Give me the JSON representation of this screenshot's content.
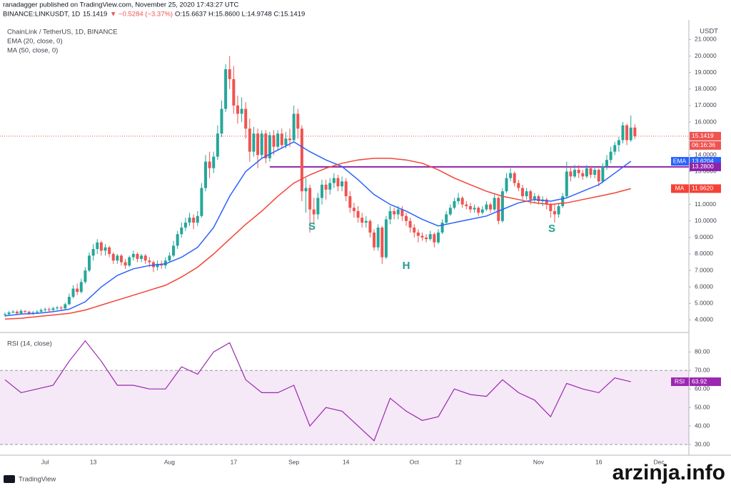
{
  "header": {
    "line1": "ranadagger published on TradingView.com, November 25, 2020 17:43:27 UTC",
    "symbol": "BINANCE:LINKUSDT, 1D",
    "price": "15.1419",
    "change": "▼ −0.5284 (−3.37%)",
    "ohlc": "O:15.6637 H:15.8600 L:14.9748 C:15.1419"
  },
  "footer": {
    "logo": "TradingView",
    "watermark": "arzinja.info"
  },
  "chart_data": {
    "type": "candlestick",
    "title": "ChainLink / TetherUS, 1D, BINANCE",
    "currency": "USDT",
    "up_color": "#26a69a",
    "down_color": "#ef5350",
    "candles": [
      [
        4.3,
        4.45,
        4.2,
        4.35
      ],
      [
        4.35,
        4.55,
        4.3,
        4.45
      ],
      [
        4.45,
        4.6,
        4.4,
        4.5
      ],
      [
        4.5,
        4.6,
        4.3,
        4.4
      ],
      [
        4.4,
        4.65,
        4.35,
        4.55
      ],
      [
        4.55,
        4.6,
        4.4,
        4.5
      ],
      [
        4.5,
        4.55,
        4.3,
        4.4
      ],
      [
        4.4,
        4.55,
        4.3,
        4.45
      ],
      [
        4.45,
        4.6,
        4.4,
        4.5
      ],
      [
        4.5,
        4.7,
        4.45,
        4.6
      ],
      [
        4.6,
        4.75,
        4.5,
        4.65
      ],
      [
        4.65,
        4.75,
        4.5,
        4.6
      ],
      [
        4.6,
        4.8,
        4.55,
        4.7
      ],
      [
        4.7,
        4.85,
        4.6,
        4.75
      ],
      [
        4.75,
        4.85,
        4.6,
        4.7
      ],
      [
        4.7,
        5.05,
        4.65,
        4.95
      ],
      [
        4.95,
        5.6,
        4.9,
        5.4
      ],
      [
        5.4,
        6.1,
        5.3,
        5.9
      ],
      [
        5.9,
        6.2,
        5.5,
        5.7
      ],
      [
        5.7,
        6.5,
        5.6,
        6.3
      ],
      [
        6.3,
        7.2,
        6.2,
        7.0
      ],
      [
        7.0,
        8.1,
        6.9,
        7.9
      ],
      [
        7.9,
        8.6,
        7.6,
        8.3
      ],
      [
        8.3,
        8.9,
        8.0,
        8.7
      ],
      [
        8.7,
        8.8,
        7.9,
        8.2
      ],
      [
        8.2,
        8.6,
        7.9,
        8.4
      ],
      [
        8.4,
        8.5,
        7.8,
        8.0
      ],
      [
        8.0,
        8.1,
        7.4,
        7.6
      ],
      [
        7.6,
        8.0,
        7.4,
        7.9
      ],
      [
        7.9,
        8.0,
        7.3,
        7.5
      ],
      [
        7.5,
        7.7,
        7.1,
        7.3
      ],
      [
        7.3,
        7.9,
        7.2,
        7.8
      ],
      [
        7.8,
        8.2,
        7.6,
        8.0
      ],
      [
        8.0,
        8.1,
        7.5,
        7.7
      ],
      [
        7.7,
        8.0,
        7.5,
        7.9
      ],
      [
        7.9,
        8.0,
        7.4,
        7.6
      ],
      [
        7.6,
        7.8,
        7.2,
        7.5
      ],
      [
        7.5,
        7.6,
        6.9,
        7.2
      ],
      [
        7.2,
        7.6,
        7.0,
        7.4
      ],
      [
        7.4,
        7.6,
        7.1,
        7.3
      ],
      [
        7.3,
        7.8,
        7.1,
        7.6
      ],
      [
        7.6,
        8.1,
        7.5,
        7.9
      ],
      [
        7.9,
        8.8,
        7.8,
        8.5
      ],
      [
        8.5,
        9.4,
        8.3,
        9.2
      ],
      [
        9.2,
        9.9,
        9.0,
        9.6
      ],
      [
        9.6,
        10.2,
        9.4,
        9.9
      ],
      [
        9.9,
        10.5,
        9.7,
        10.2
      ],
      [
        10.2,
        10.4,
        9.5,
        9.9
      ],
      [
        9.9,
        10.6,
        9.7,
        10.3
      ],
      [
        10.3,
        12.3,
        10.2,
        12.0
      ],
      [
        12.0,
        14.0,
        11.8,
        13.6
      ],
      [
        13.6,
        14.2,
        12.6,
        13.2
      ],
      [
        13.2,
        14.2,
        12.9,
        13.9
      ],
      [
        13.9,
        15.8,
        13.7,
        15.3
      ],
      [
        15.3,
        17.3,
        15.1,
        16.8
      ],
      [
        16.8,
        19.5,
        16.6,
        19.2
      ],
      [
        19.2,
        20.0,
        18.0,
        18.6
      ],
      [
        18.6,
        19.4,
        16.5,
        17.0
      ],
      [
        17.0,
        17.6,
        15.9,
        16.5
      ],
      [
        16.5,
        17.5,
        16.0,
        16.8
      ],
      [
        16.8,
        17.2,
        15.0,
        15.6
      ],
      [
        15.6,
        16.2,
        13.6,
        14.2
      ],
      [
        14.2,
        15.7,
        13.9,
        15.3
      ],
      [
        15.3,
        15.6,
        13.2,
        14.0
      ],
      [
        14.0,
        15.5,
        13.8,
        15.3
      ],
      [
        15.3,
        15.5,
        13.5,
        13.8
      ],
      [
        13.8,
        15.4,
        13.6,
        15.2
      ],
      [
        15.2,
        15.5,
        14.0,
        14.5
      ],
      [
        14.5,
        15.5,
        14.3,
        15.3
      ],
      [
        15.3,
        15.6,
        14.4,
        14.6
      ],
      [
        14.6,
        15.4,
        14.4,
        15.0
      ],
      [
        15.0,
        15.6,
        14.5,
        14.9
      ],
      [
        14.9,
        17.0,
        14.8,
        16.5
      ],
      [
        16.5,
        16.8,
        15.0,
        15.6
      ],
      [
        15.6,
        15.8,
        11.2,
        11.8
      ],
      [
        11.8,
        12.6,
        10.5,
        12.0
      ],
      [
        12.0,
        12.2,
        9.3,
        10.7
      ],
      [
        10.7,
        11.4,
        9.8,
        10.4
      ],
      [
        10.4,
        11.7,
        10.1,
        11.4
      ],
      [
        11.4,
        12.5,
        11.0,
        12.2
      ],
      [
        12.2,
        12.5,
        11.3,
        11.9
      ],
      [
        11.9,
        12.6,
        11.6,
        12.3
      ],
      [
        12.3,
        12.9,
        12.0,
        12.6
      ],
      [
        12.6,
        12.8,
        11.8,
        12.1
      ],
      [
        12.1,
        12.7,
        11.8,
        12.4
      ],
      [
        12.4,
        12.6,
        11.2,
        11.5
      ],
      [
        11.5,
        11.8,
        10.5,
        10.8
      ],
      [
        10.8,
        11.1,
        10.2,
        10.6
      ],
      [
        10.6,
        10.9,
        9.9,
        10.2
      ],
      [
        10.2,
        10.5,
        9.6,
        9.9
      ],
      [
        9.9,
        10.3,
        9.6,
        10.0
      ],
      [
        10.0,
        10.1,
        9.0,
        9.3
      ],
      [
        9.3,
        9.5,
        8.2,
        8.4
      ],
      [
        8.4,
        9.8,
        8.2,
        9.6
      ],
      [
        9.6,
        9.7,
        7.4,
        7.8
      ],
      [
        7.8,
        10.3,
        7.7,
        10.1
      ],
      [
        10.1,
        10.9,
        9.8,
        10.6
      ],
      [
        10.6,
        10.8,
        10.1,
        10.4
      ],
      [
        10.4,
        10.9,
        10.1,
        10.7
      ],
      [
        10.7,
        10.9,
        10.0,
        10.3
      ],
      [
        10.3,
        10.5,
        9.7,
        10.0
      ],
      [
        10.0,
        10.2,
        9.3,
        9.6
      ],
      [
        9.6,
        9.8,
        9.0,
        9.3
      ],
      [
        9.3,
        9.5,
        8.7,
        9.1
      ],
      [
        9.1,
        9.3,
        8.8,
        9.0
      ],
      [
        9.0,
        9.2,
        8.7,
        8.9
      ],
      [
        8.9,
        9.4,
        8.8,
        9.2
      ],
      [
        9.2,
        9.3,
        8.4,
        8.7
      ],
      [
        8.7,
        9.5,
        8.6,
        9.3
      ],
      [
        9.3,
        10.1,
        9.2,
        9.9
      ],
      [
        9.9,
        10.6,
        9.8,
        10.4
      ],
      [
        10.4,
        11.0,
        10.3,
        10.8
      ],
      [
        10.8,
        11.4,
        10.7,
        11.2
      ],
      [
        11.2,
        11.7,
        11.0,
        11.4
      ],
      [
        11.4,
        11.5,
        10.8,
        11.0
      ],
      [
        11.0,
        11.2,
        10.7,
        10.9
      ],
      [
        10.9,
        11.1,
        10.5,
        10.7
      ],
      [
        10.7,
        11.0,
        10.5,
        10.8
      ],
      [
        10.8,
        10.9,
        10.3,
        10.5
      ],
      [
        10.5,
        10.9,
        10.4,
        10.7
      ],
      [
        10.7,
        11.2,
        10.6,
        11.0
      ],
      [
        11.0,
        11.1,
        10.5,
        10.7
      ],
      [
        10.7,
        11.6,
        10.6,
        11.4
      ],
      [
        11.4,
        11.5,
        9.8,
        10.0
      ],
      [
        10.0,
        12.0,
        9.9,
        11.8
      ],
      [
        11.8,
        12.9,
        11.7,
        12.6
      ],
      [
        12.6,
        13.2,
        12.4,
        12.9
      ],
      [
        12.9,
        13.0,
        12.1,
        12.3
      ],
      [
        12.3,
        12.5,
        11.8,
        12.0
      ],
      [
        12.0,
        12.2,
        11.3,
        11.5
      ],
      [
        11.5,
        12.0,
        11.3,
        11.8
      ],
      [
        11.8,
        11.9,
        11.0,
        11.3
      ],
      [
        11.3,
        11.7,
        11.1,
        11.5
      ],
      [
        11.5,
        11.6,
        11.0,
        11.2
      ],
      [
        11.2,
        11.5,
        10.9,
        11.3
      ],
      [
        11.3,
        11.4,
        10.7,
        11.0
      ],
      [
        11.0,
        11.1,
        10.2,
        10.6
      ],
      [
        10.6,
        11.0,
        9.9,
        10.4
      ],
      [
        10.4,
        11.1,
        10.2,
        10.9
      ],
      [
        10.9,
        11.7,
        10.8,
        11.5
      ],
      [
        11.5,
        13.6,
        11.4,
        13.0
      ],
      [
        13.0,
        13.3,
        12.4,
        12.7
      ],
      [
        12.7,
        13.4,
        12.6,
        13.1
      ],
      [
        13.1,
        13.4,
        12.6,
        12.9
      ],
      [
        12.9,
        13.1,
        12.5,
        12.7
      ],
      [
        12.7,
        13.4,
        12.6,
        13.2
      ],
      [
        13.2,
        13.3,
        12.6,
        12.8
      ],
      [
        12.8,
        13.3,
        12.6,
        13.1
      ],
      [
        13.1,
        13.2,
        12.1,
        12.4
      ],
      [
        12.4,
        13.5,
        12.3,
        13.3
      ],
      [
        13.3,
        14.0,
        13.1,
        13.7
      ],
      [
        13.7,
        14.5,
        13.5,
        14.2
      ],
      [
        14.2,
        14.8,
        14.0,
        14.6
      ],
      [
        14.6,
        15.1,
        14.2,
        14.9
      ],
      [
        14.9,
        16.0,
        14.7,
        15.8
      ],
      [
        15.8,
        15.9,
        14.6,
        14.9
      ],
      [
        14.9,
        16.4,
        14.8,
        15.66
      ],
      [
        15.6637,
        15.86,
        14.9748,
        15.1419
      ]
    ],
    "ylim": [
      3.5,
      22.1
    ],
    "yticks": [
      {
        "value": 4,
        "label": "4.0000"
      },
      {
        "value": 5,
        "label": "5.0000"
      },
      {
        "value": 6,
        "label": "6.0000"
      },
      {
        "value": 7,
        "label": "7.0000"
      },
      {
        "value": 8,
        "label": "8.0000"
      },
      {
        "value": 9,
        "label": "9.0000"
      },
      {
        "value": 10,
        "label": "10.0000"
      },
      {
        "value": 11,
        "label": "11.0000"
      },
      {
        "value": 12,
        "label": "12.0000"
      },
      {
        "value": 13,
        "label": "13.0000"
      },
      {
        "value": 14,
        "label": "14.0000"
      },
      {
        "value": 15,
        "label": "15.0000"
      },
      {
        "value": 16,
        "label": "16.0000"
      },
      {
        "value": 17,
        "label": "17.0000"
      },
      {
        "value": 18,
        "label": "18.0000"
      },
      {
        "value": 19,
        "label": "19.0000"
      },
      {
        "value": 20,
        "label": "20.0000"
      },
      {
        "value": 21,
        "label": "21.0000"
      }
    ],
    "xtick_labels": [
      "Jul",
      "13",
      "Aug",
      "17",
      "Sep",
      "14",
      "Oct",
      "12",
      "Nov",
      "16",
      "Dec"
    ],
    "countdown": "06:16:36",
    "level": {
      "value": 13.28,
      "label": "13.2800",
      "color": "#8e24aa"
    },
    "series": [
      {
        "name": "EMA (20, close, 0)",
        "tag": "EMA",
        "color": "#2962ff",
        "end_label": "13.6204",
        "values": [
          4.25,
          4.35,
          4.4,
          4.5,
          4.65,
          5.1,
          6.0,
          6.7,
          7.1,
          7.3,
          7.4,
          7.8,
          8.4,
          9.6,
          11.5,
          13.0,
          13.8,
          14.3,
          14.8,
          14.2,
          13.7,
          13.3,
          12.5,
          11.6,
          11.0,
          10.6,
          10.1,
          9.7,
          9.9,
          10.1,
          10.3,
          10.7,
          11.1,
          11.3,
          11.2,
          11.4,
          11.8,
          12.2,
          12.9,
          13.6204
        ]
      },
      {
        "name": "MA (50, close, 0)",
        "tag": "MA",
        "color": "#f44336",
        "end_label": "11.9620",
        "values": [
          4.05,
          4.1,
          4.2,
          4.3,
          4.4,
          4.6,
          4.9,
          5.2,
          5.5,
          5.8,
          6.1,
          6.6,
          7.2,
          8.0,
          8.9,
          9.8,
          10.6,
          11.5,
          12.3,
          12.8,
          13.2,
          13.5,
          13.7,
          13.8,
          13.8,
          13.7,
          13.5,
          13.1,
          12.6,
          12.2,
          11.8,
          11.5,
          11.3,
          11.1,
          11.0,
          11.1,
          11.3,
          11.5,
          11.7,
          11.962
        ]
      }
    ],
    "annotations": [
      "S",
      "H",
      "S"
    ],
    "rsi": {
      "title": "RSI (14, close)",
      "tag": "RSI",
      "color": "#9c27b0",
      "ylim": [
        25,
        89
      ],
      "band": [
        30,
        70
      ],
      "yticks": [
        {
          "value": 30,
          "label": "30.00"
        },
        {
          "value": 40,
          "label": "40.00"
        },
        {
          "value": 50,
          "label": "50.00"
        },
        {
          "value": 60,
          "label": "60.00"
        },
        {
          "value": 70,
          "label": "70.00"
        },
        {
          "value": 80,
          "label": "80.00"
        }
      ],
      "values": [
        65,
        58,
        60,
        62,
        75,
        86,
        75,
        62,
        62,
        60,
        60,
        72,
        68,
        80,
        85,
        65,
        58,
        58,
        62,
        40,
        50,
        48,
        40,
        32,
        55,
        48,
        43,
        45,
        60,
        57,
        56,
        65,
        58,
        54,
        45,
        63,
        60,
        58,
        66,
        63.92
      ]
    }
  }
}
